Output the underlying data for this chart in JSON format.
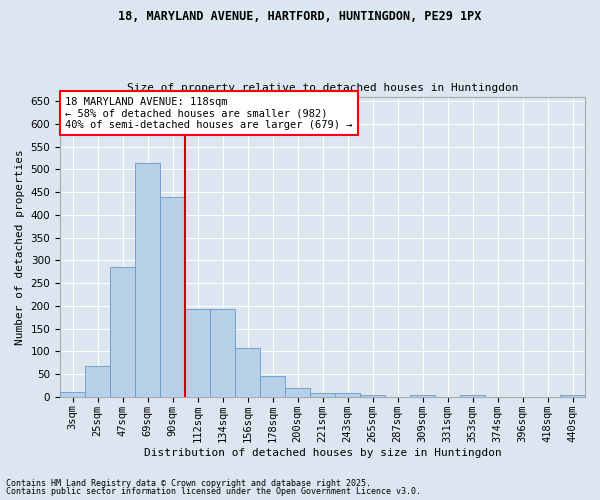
{
  "title1": "18, MARYLAND AVENUE, HARTFORD, HUNTINGDON, PE29 1PX",
  "title2": "Size of property relative to detached houses in Huntingdon",
  "xlabel": "Distribution of detached houses by size in Huntingdon",
  "ylabel": "Number of detached properties",
  "footnote1": "Contains HM Land Registry data © Crown copyright and database right 2025.",
  "footnote2": "Contains public sector information licensed under the Open Government Licence v3.0.",
  "annotation_line1": "18 MARYLAND AVENUE: 118sqm",
  "annotation_line2": "← 58% of detached houses are smaller (982)",
  "annotation_line3": "40% of semi-detached houses are larger (679) →",
  "bar_color": "#b8cfe8",
  "bar_edge_color": "#6699cc",
  "vline_color": "#cc0000",
  "bg_color": "#dce6f0",
  "grid_color": "#ffffff",
  "categories": [
    "3sqm",
    "25sqm",
    "47sqm",
    "69sqm",
    "90sqm",
    "112sqm",
    "134sqm",
    "156sqm",
    "178sqm",
    "200sqm",
    "221sqm",
    "243sqm",
    "265sqm",
    "287sqm",
    "309sqm",
    "331sqm",
    "353sqm",
    "374sqm",
    "396sqm",
    "418sqm",
    "440sqm"
  ],
  "values": [
    10,
    68,
    285,
    515,
    440,
    193,
    193,
    107,
    46,
    20,
    8,
    8,
    5,
    0,
    3,
    0,
    3,
    0,
    0,
    0,
    5
  ],
  "ylim": [
    0,
    660
  ],
  "yticks": [
    0,
    50,
    100,
    150,
    200,
    250,
    300,
    350,
    400,
    450,
    500,
    550,
    600,
    650
  ],
  "vline_x_index": 4.5,
  "title1_fontsize": 8.5,
  "title2_fontsize": 8.0,
  "ylabel_fontsize": 8.0,
  "xlabel_fontsize": 8.0,
  "tick_fontsize": 7.5,
  "annot_fontsize": 7.5,
  "footnote_fontsize": 6.0
}
